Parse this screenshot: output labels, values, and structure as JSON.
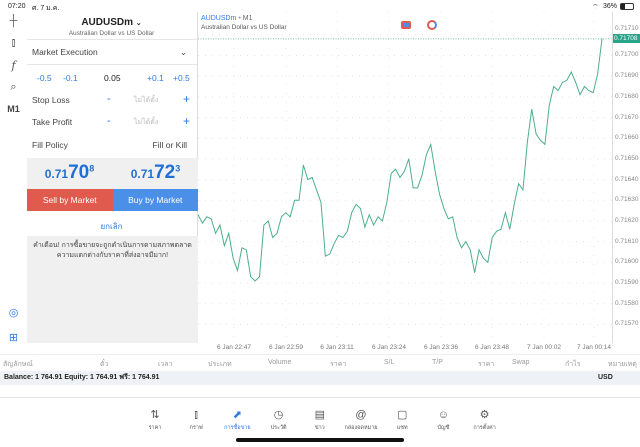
{
  "status": {
    "time": "07:20",
    "date": "ศ. 7 ม.ค.",
    "battery": "36%"
  },
  "toolbar": {
    "timeframe": "M1"
  },
  "order": {
    "symbol": "AUDUSDm",
    "symbol_desc": "Australian Dollar vs US Dollar",
    "execution": "Market Execution",
    "vol_steps": [
      "-0.5",
      "-0.1",
      "+0.1",
      "+0.5"
    ],
    "volume": "0.05",
    "stop_loss": "Stop Loss",
    "take_profit": "Take Profit",
    "not_set": "ไม่ได้ตั้ง",
    "minus": "-",
    "plus": "+",
    "fill_policy": "Fill Policy",
    "fill_value": "Fill or Kill",
    "bid": {
      "small": "0.71",
      "big": "70",
      "sup": "8"
    },
    "ask": {
      "small": "0.71",
      "big": "72",
      "sup": "3"
    },
    "sell": "Sell by Market",
    "buy": "Buy by Market",
    "cancel": "ยกเลิก",
    "warning": "คำเตือน! การซื้อขายจะถูกดำเนินการตามสภาพตลาด ความแตกต่างกับราคาที่ส่งอาจมีมาก!",
    "sell_color": "#e05a4e",
    "buy_color": "#4a90e8"
  },
  "chart_header": {
    "symbol": "AUDUSDm",
    "sep": "•",
    "timeframe": "M1",
    "desc": "Australian Dollar vs US Dollar"
  },
  "chart_data": {
    "type": "line",
    "line_color": "#4caf8a",
    "current_price": "0.71708",
    "ylim": [
      0.71561,
      0.71721
    ],
    "yticks": [
      "0.71710",
      "0.71700",
      "0.71690",
      "0.71680",
      "0.71670",
      "0.71660",
      "0.71650",
      "0.71640",
      "0.71630",
      "0.71620",
      "0.71610",
      "0.71600",
      "0.71590",
      "0.71580",
      "0.71570"
    ],
    "xticks": [
      "6 Jan 22:47",
      "6 Jan 22:59",
      "6 Jan 23:11",
      "6 Jan 23:24",
      "6 Jan 23:36",
      "6 Jan 23:48",
      "7 Jan 00:02",
      "7 Jan 00:14"
    ],
    "values": [
      0.71623,
      0.71619,
      0.71622,
      0.71621,
      0.71614,
      0.71618,
      0.71608,
      0.71614,
      0.71602,
      0.71596,
      0.71607,
      0.71606,
      0.71593,
      0.71591,
      0.71593,
      0.71618,
      0.7162,
      0.71612,
      0.71614,
      0.71622,
      0.71624,
      0.71622,
      0.7163,
      0.7163,
      0.71647,
      0.7164,
      0.71641,
      0.71635,
      0.71629,
      0.71603,
      0.71604,
      0.71609,
      0.71613,
      0.71612,
      0.71615,
      0.71624,
      0.71628,
      0.71626,
      0.71617,
      0.71623,
      0.71618,
      0.71622,
      0.7162,
      0.71629,
      0.71643,
      0.71645,
      0.71641,
      0.71644,
      0.7165,
      0.71636,
      0.71636,
      0.71642,
      0.71652,
      0.71657,
      0.71644,
      0.71633,
      0.71626,
      0.71621,
      0.71622,
      0.71612,
      0.71607,
      0.7161,
      0.71606,
      0.71595,
      0.71606,
      0.71602,
      0.716,
      0.71612,
      0.71615,
      0.71616,
      0.71624,
      0.71616,
      0.71628,
      0.71638,
      0.71635,
      0.71658,
      0.71674,
      0.71662,
      0.71659,
      0.71657,
      0.71676,
      0.71685,
      0.71683,
      0.71687,
      0.71688,
      0.71692,
      0.71687,
      0.71681,
      0.71685,
      0.71683,
      0.71682,
      0.71691,
      0.71708
    ]
  },
  "columns": [
    "สัญลักษณ์",
    "ตั๋ว",
    "เวลา",
    "ประเภท",
    "Volume",
    "ราคา",
    "S/L",
    "T/P",
    "ราคา",
    "Swap",
    "กำไร",
    "หมายเหตุ"
  ],
  "balance": {
    "text": "Balance: 1 764.91 Equity: 1 764.91 ฟรี: 1 764.91",
    "currency": "USD"
  },
  "tabs": [
    {
      "label": "ราคา",
      "icon": "quotes-icon"
    },
    {
      "label": "กราฟ",
      "icon": "chart-icon"
    },
    {
      "label": "การซื้อขาย",
      "icon": "trade-icon"
    },
    {
      "label": "ประวัติ",
      "icon": "history-icon"
    },
    {
      "label": "ข่าว",
      "icon": "news-icon"
    },
    {
      "label": "กล่องจดหมาย",
      "icon": "mailbox-icon"
    },
    {
      "label": "แชท",
      "icon": "chat-icon"
    },
    {
      "label": "บัญชี",
      "icon": "account-icon"
    },
    {
      "label": "การตั้งค่า",
      "icon": "settings-icon"
    }
  ],
  "active_tab": "การซื้อขาย"
}
